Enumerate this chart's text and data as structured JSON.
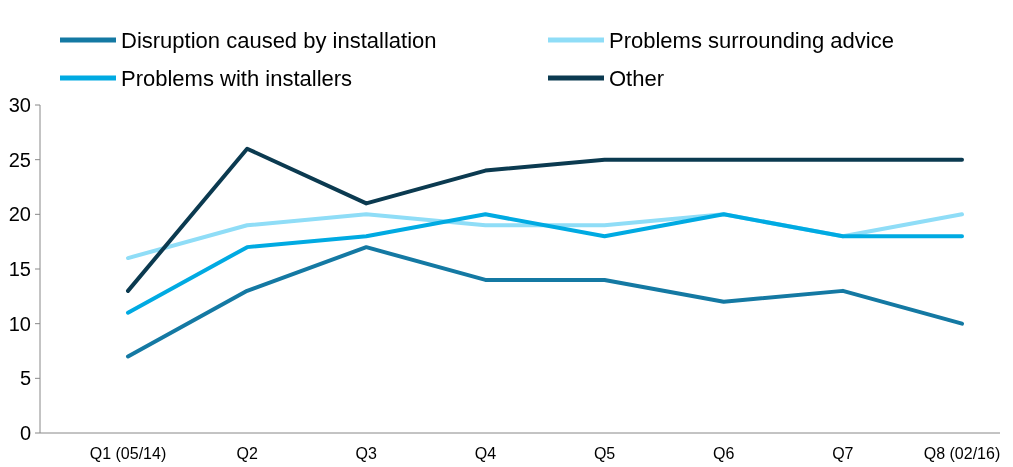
{
  "chart_data": {
    "type": "line",
    "categories": [
      "Q1 (05/14)",
      "Q2",
      "Q3",
      "Q4",
      "Q5",
      "Q6",
      "Q7",
      "Q8 (02/16)"
    ],
    "series": [
      {
        "name": "Disruption caused by installation",
        "color": "#1479a3",
        "values": [
          7,
          13,
          17,
          14,
          14,
          12,
          13,
          10
        ]
      },
      {
        "name": "Problems surrounding advice",
        "color": "#8fddf7",
        "values": [
          16,
          19,
          20,
          19,
          19,
          20,
          18,
          20
        ]
      },
      {
        "name": "Problems with installers",
        "color": "#00aae2",
        "values": [
          11,
          17,
          18,
          20,
          18,
          20,
          18,
          18
        ]
      },
      {
        "name": "Other",
        "color": "#0b3a50",
        "values": [
          13,
          26,
          21,
          24,
          25,
          25,
          25,
          25
        ]
      }
    ],
    "ylim": [
      0,
      30
    ],
    "yticks": [
      0,
      5,
      10,
      15,
      20,
      25,
      30
    ],
    "grid": false,
    "legend": "top",
    "marker": "none",
    "line_style": "solid"
  }
}
